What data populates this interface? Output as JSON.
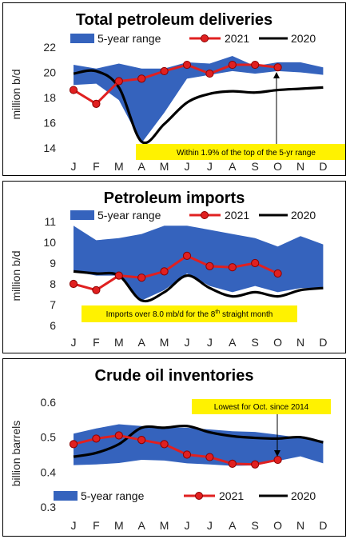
{
  "months": [
    "J",
    "F",
    "M",
    "A",
    "M",
    "J",
    "J",
    "A",
    "S",
    "O",
    "N",
    "D"
  ],
  "legend": {
    "range": "5-year range",
    "y2021": "2021",
    "y2020": "2020"
  },
  "colors": {
    "range": "#3563bd",
    "y2021": "#e02020",
    "y2020": "#000000",
    "note_bg": "#fff200"
  },
  "chart_data": [
    {
      "type": "area",
      "title": "Total petroleum deliveries",
      "ylabel": "million b/d",
      "ylim": [
        14,
        22
      ],
      "yticks": [
        14,
        16,
        18,
        20,
        22
      ],
      "annotation": "Within 1.9% of the top of the 5-yr range",
      "series": [
        {
          "name": "5-year range",
          "low": [
            19.0,
            19.1,
            17.8,
            14.4,
            16.8,
            19.5,
            19.8,
            20.1,
            19.9,
            20.1,
            20.0,
            19.8
          ],
          "high": [
            20.6,
            20.3,
            20.7,
            20.3,
            20.3,
            20.8,
            20.7,
            21.3,
            20.5,
            20.8,
            20.8,
            20.4
          ]
        },
        {
          "name": "2021",
          "values": [
            18.6,
            17.5,
            19.3,
            19.5,
            20.1,
            20.6,
            19.9,
            20.6,
            20.6,
            20.4
          ]
        },
        {
          "name": "2020",
          "values": [
            19.9,
            20.1,
            18.8,
            14.5,
            15.9,
            17.6,
            18.3,
            18.5,
            18.4,
            18.6,
            18.7,
            18.8
          ]
        }
      ]
    },
    {
      "type": "area",
      "title": "Petroleum imports",
      "ylabel": "million b/d",
      "ylim": [
        6,
        11
      ],
      "yticks": [
        6,
        7,
        8,
        9,
        10,
        11
      ],
      "annotation_parts": [
        "Imports over 8.0 mb/d for the 8",
        "th",
        " straight month"
      ],
      "series": [
        {
          "name": "5-year range",
          "low": [
            8.6,
            8.4,
            8.4,
            7.2,
            7.7,
            8.5,
            7.9,
            7.6,
            7.9,
            7.6,
            7.8,
            7.8
          ],
          "high": [
            10.8,
            10.1,
            10.2,
            10.4,
            10.8,
            10.8,
            10.6,
            10.4,
            10.2,
            9.8,
            10.3,
            9.9
          ]
        },
        {
          "name": "2021",
          "values": [
            8.0,
            7.7,
            8.4,
            8.3,
            8.6,
            9.35,
            8.85,
            8.8,
            9.0,
            8.5
          ]
        },
        {
          "name": "2020",
          "values": [
            8.6,
            8.5,
            8.4,
            7.2,
            7.6,
            8.4,
            7.8,
            7.4,
            7.6,
            7.4,
            7.7,
            7.8
          ]
        }
      ]
    },
    {
      "type": "area",
      "title": "Crude oil inventories",
      "ylabel": "billion barrels",
      "ylim": [
        0.3,
        0.6
      ],
      "yticks": [
        0.3,
        0.4,
        0.5,
        0.6
      ],
      "annotation": "Lowest for Oct. since 2014",
      "series": [
        {
          "name": "5-year range",
          "low": [
            0.42,
            0.422,
            0.426,
            0.435,
            0.433,
            0.425,
            0.422,
            0.418,
            0.419,
            0.432,
            0.445,
            0.425
          ],
          "high": [
            0.51,
            0.525,
            0.537,
            0.532,
            0.528,
            0.527,
            0.522,
            0.517,
            0.515,
            0.507,
            0.498,
            0.49
          ]
        },
        {
          "name": "2021",
          "values": [
            0.48,
            0.496,
            0.505,
            0.492,
            0.48,
            0.45,
            0.443,
            0.424,
            0.422,
            0.435
          ]
        },
        {
          "name": "2020",
          "values": [
            0.444,
            0.455,
            0.48,
            0.527,
            0.527,
            0.532,
            0.514,
            0.503,
            0.498,
            0.496,
            0.5,
            0.485
          ]
        }
      ]
    }
  ]
}
